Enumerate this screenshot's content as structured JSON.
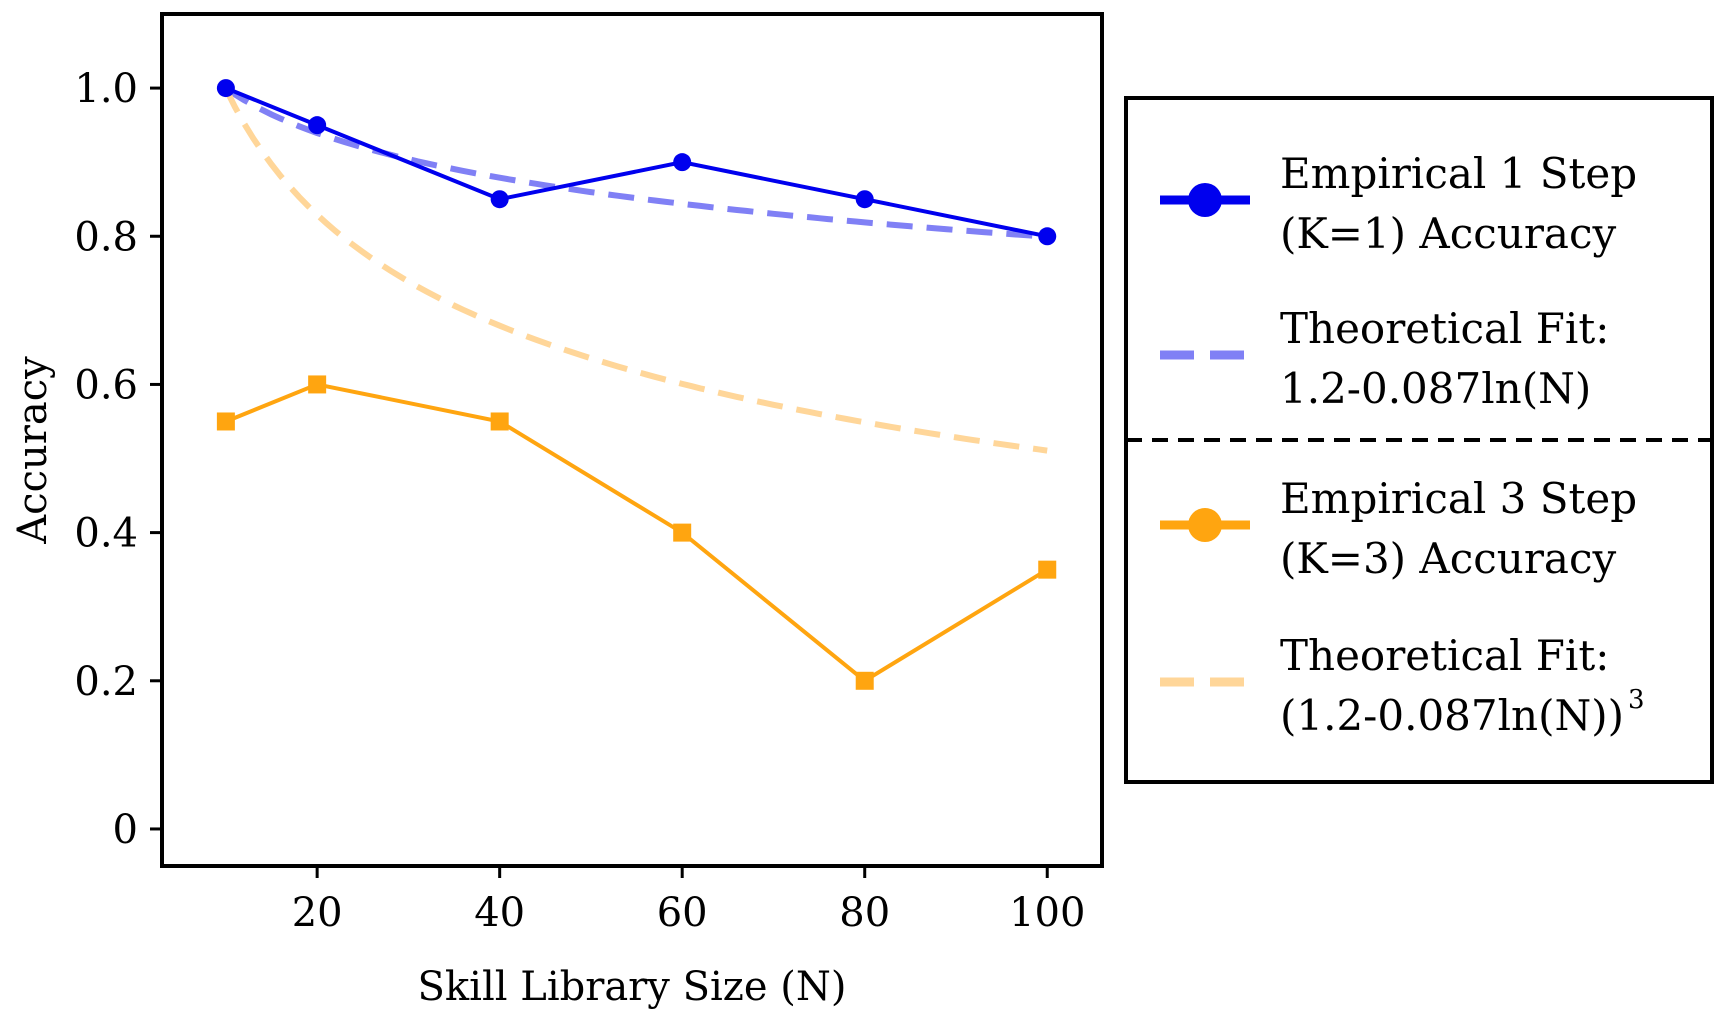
{
  "chart_data": {
    "type": "line",
    "title": "",
    "xlabel": "Skill Library Size (N)",
    "ylabel": "Accuracy",
    "xlim": [
      3,
      106
    ],
    "ylim": [
      -0.05,
      1.1
    ],
    "xticks": [
      20,
      40,
      60,
      80,
      100
    ],
    "xtick_labels": [
      "20",
      "40",
      "60",
      "80",
      "100"
    ],
    "yticks": [
      0,
      0.2,
      0.4,
      0.6,
      0.8,
      1.0
    ],
    "ytick_labels": [
      "0",
      "0.2",
      "0.4",
      "0.6",
      "0.8",
      "1.0"
    ],
    "grid": false,
    "legend_position": "outside-right",
    "series": [
      {
        "name": "Empirical 1 Step (K=1) Accuracy",
        "legend_lines": [
          "Empirical 1 Step",
          "(K=1) Accuracy"
        ],
        "style": "solid",
        "marker": "circle",
        "color": "#0000ee",
        "x": [
          10,
          20,
          40,
          60,
          80,
          100
        ],
        "y": [
          1.0,
          0.95,
          0.85,
          0.9,
          0.85,
          0.8
        ]
      },
      {
        "name": "Theoretical Fit: 1.2-0.087ln(N)",
        "legend_lines": [
          "Theoretical Fit:",
          "1.2-0.087ln(N)"
        ],
        "style": "dashed",
        "marker": "none",
        "color": "#8080f5",
        "formula": "1.2-0.087ln(N)",
        "x_range": [
          10,
          100
        ]
      },
      {
        "name": "Empirical 3 Step (K=3) Accuracy",
        "legend_lines": [
          "Empirical 3 Step",
          "(K=3) Accuracy"
        ],
        "style": "solid",
        "marker": "square",
        "color": "#ffa510",
        "x": [
          10,
          20,
          40,
          60,
          80,
          100
        ],
        "y": [
          0.55,
          0.6,
          0.55,
          0.4,
          0.2,
          0.35
        ]
      },
      {
        "name": "Theoretical Fit: (1.2-0.087ln(N))³",
        "legend_lines": [
          "Theoretical Fit:",
          "(1.2-0.087ln(N))",
          "3"
        ],
        "style": "dashed",
        "marker": "none",
        "color": "#ffd699",
        "formula": "(1.2-0.087ln(N))^3",
        "x_range": [
          10,
          100
        ]
      }
    ]
  }
}
